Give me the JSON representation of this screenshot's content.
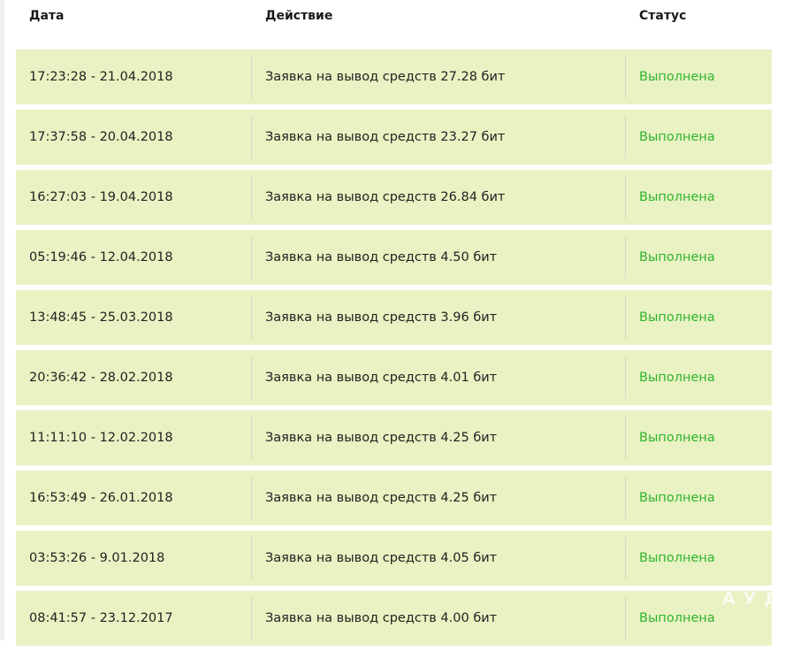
{
  "headers": {
    "date": "Дата",
    "action": "Действие",
    "status": "Статус"
  },
  "rows": [
    {
      "date": "17:23:28 - 21.04.2018",
      "action": "Заявка на вывод средств 27.28 бит",
      "status": "Выполнена"
    },
    {
      "date": "17:37:58 - 20.04.2018",
      "action": "Заявка на вывод средств 23.27 бит",
      "status": "Выполнена"
    },
    {
      "date": "16:27:03 - 19.04.2018",
      "action": "Заявка на вывод средств 26.84 бит",
      "status": "Выполнена"
    },
    {
      "date": "05:19:46 - 12.04.2018",
      "action": "Заявка на вывод средств 4.50 бит",
      "status": "Выполнена"
    },
    {
      "date": "13:48:45 - 25.03.2018",
      "action": "Заявка на вывод средств 3.96 бит",
      "status": "Выполнена"
    },
    {
      "date": "20:36:42 - 28.02.2018",
      "action": "Заявка на вывод средств 4.01 бит",
      "status": "Выполнена"
    },
    {
      "date": "11:11:10 - 12.02.2018",
      "action": "Заявка на вывод средств 4.25 бит",
      "status": "Выполнена"
    },
    {
      "date": "16:53:49 - 26.01.2018",
      "action": "Заявка на вывод средств 4.25 бит",
      "status": "Выполнена"
    },
    {
      "date": "03:53:26 - 9.01.2018",
      "action": "Заявка на вывод средств 4.05 бит",
      "status": "Выполнена"
    },
    {
      "date": "08:41:57 - 23.12.2017",
      "action": "Заявка на вывод средств 4.00 бит",
      "status": "Выполнена"
    }
  ],
  "watermark": "АУДИ",
  "colors": {
    "row_bg": "#e9f2c2",
    "status_done": "#2fb52f"
  }
}
